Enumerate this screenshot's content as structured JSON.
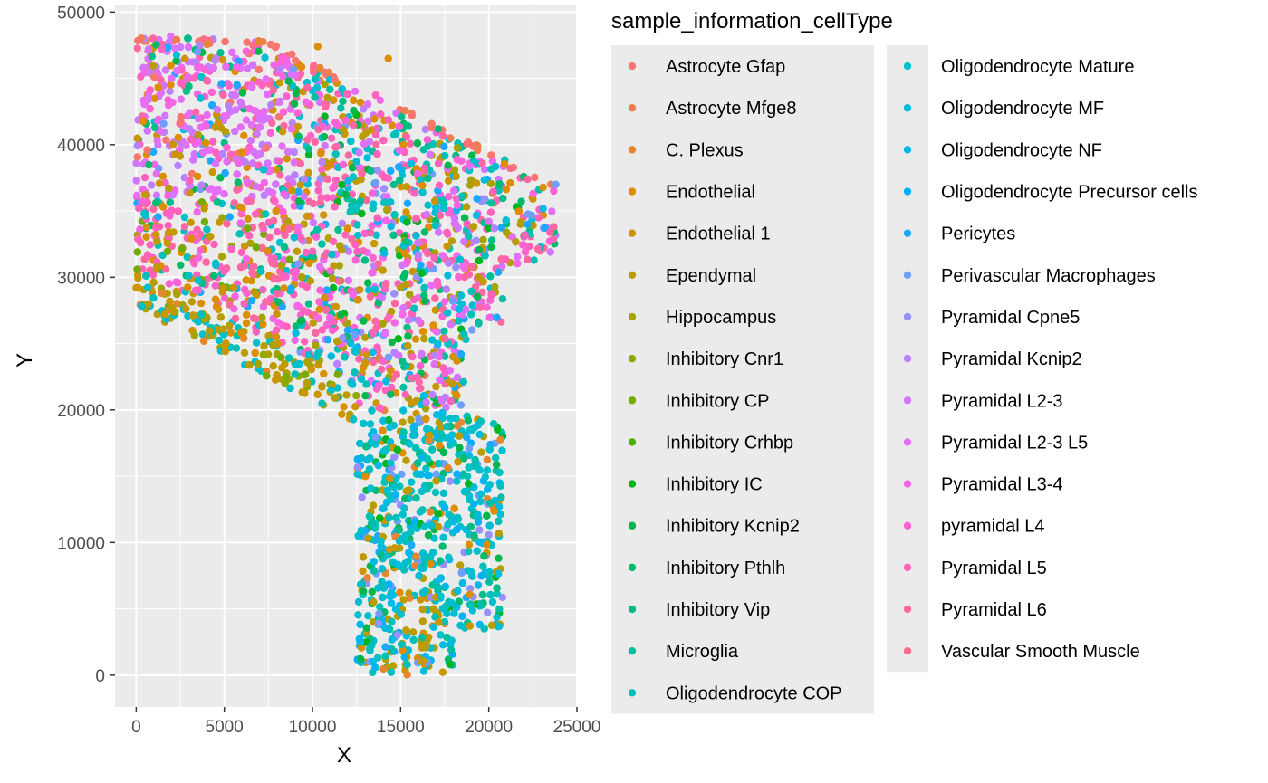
{
  "chart_data": {
    "type": "scatter",
    "title": "",
    "xlabel": "X",
    "ylabel": "Y",
    "xlim": [
      -1200,
      25000
    ],
    "ylim": [
      -2400,
      50500
    ],
    "x_ticks": [
      0,
      5000,
      10000,
      15000,
      20000,
      25000
    ],
    "y_ticks": [
      0,
      10000,
      20000,
      30000,
      40000,
      50000
    ],
    "x_tick_labels": [
      "0",
      "5000",
      "10000",
      "15000",
      "20000",
      "25000"
    ],
    "y_tick_labels": [
      "0",
      "10000",
      "20000",
      "30000",
      "40000",
      "50000"
    ],
    "grid": true,
    "background": "#ebebeb",
    "legend": {
      "title": "sample_information_cellType",
      "placement": "right",
      "columns": 2
    },
    "series": [
      {
        "name": "Astrocyte Gfap",
        "color": "#F8766D"
      },
      {
        "name": "Astrocyte Mfge8",
        "color": "#F07F4F"
      },
      {
        "name": "C. Plexus",
        "color": "#E6862F"
      },
      {
        "name": "Endothelial",
        "color": "#DA8E00"
      },
      {
        "name": "Endothelial 1",
        "color": "#CB9500"
      },
      {
        "name": "Ependymal",
        "color": "#BA9C00"
      },
      {
        "name": "Hippocampus",
        "color": "#A6A200"
      },
      {
        "name": "Inhibitory Cnr1",
        "color": "#8FA800"
      },
      {
        "name": "Inhibitory CP",
        "color": "#73AC00"
      },
      {
        "name": "Inhibitory Crhbp",
        "color": "#4BB100"
      },
      {
        "name": "Inhibitory IC",
        "color": "#00B520"
      },
      {
        "name": "Inhibitory Kcnip2",
        "color": "#00B74F"
      },
      {
        "name": "Inhibitory Pthlh",
        "color": "#00BA6E"
      },
      {
        "name": "Inhibitory Vip",
        "color": "#00BC89"
      },
      {
        "name": "Microglia",
        "color": "#00BEA2"
      },
      {
        "name": "Oligodendrocyte COP",
        "color": "#00C0B9"
      },
      {
        "name": "Oligodendrocyte Mature",
        "color": "#00BECE"
      },
      {
        "name": "Oligodendrocyte MF",
        "color": "#00BBE0"
      },
      {
        "name": "Oligodendrocyte NF",
        "color": "#00B6F0"
      },
      {
        "name": "Oligodendrocyte Precursor cells",
        "color": "#00B0FB"
      },
      {
        "name": "Pericytes",
        "color": "#1DA8FF"
      },
      {
        "name": "Perivascular Macrophages",
        "color": "#6F9EFF"
      },
      {
        "name": "Pyramidal Cpne5",
        "color": "#9890FF"
      },
      {
        "name": "Pyramidal Kcnip2",
        "color": "#B882FF"
      },
      {
        "name": "Pyramidal L2-3",
        "color": "#D276FF"
      },
      {
        "name": "Pyramidal L2-3 L5",
        "color": "#E56EF6"
      },
      {
        "name": "Pyramidal L3-4",
        "color": "#F366E6"
      },
      {
        "name": "pyramidal L4",
        "color": "#FC62D2"
      },
      {
        "name": "Pyramidal L5",
        "color": "#FF62BB"
      },
      {
        "name": "Pyramidal L6",
        "color": "#FF67A2"
      },
      {
        "name": "Vascular Smooth Muscle",
        "color": "#FF6C89"
      }
    ]
  }
}
